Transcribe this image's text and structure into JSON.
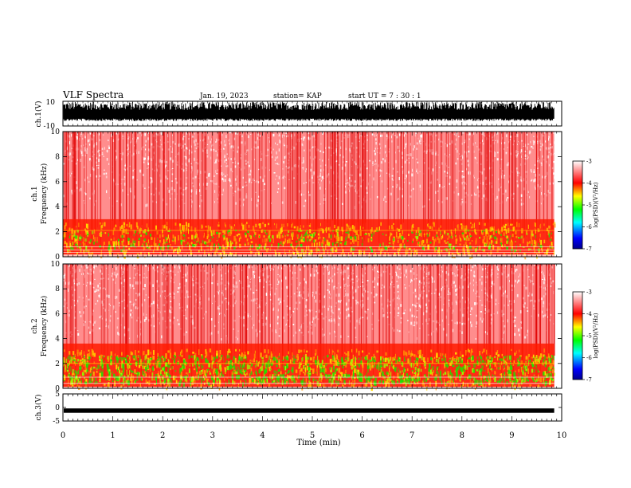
{
  "header": {
    "title": "VLF Spectra",
    "date": "Jan. 19, 2023",
    "station": "station= KAP",
    "start": "start  UT =   7 : 30 : 1"
  },
  "chart_data": [
    {
      "id": "ch1-waveform",
      "type": "line",
      "ylabel": "ch.1(V)",
      "ylim": [
        -10,
        10
      ],
      "ytick_labels": [
        "10",
        "-10"
      ],
      "xlim": [
        0,
        10
      ],
      "description_level": "dense noisy waveform between about -5 and 9 V"
    },
    {
      "id": "ch1-spectrogram",
      "type": "heatmap",
      "ylabel": "ch.1",
      "ylabel2": "Frequency (kHz)",
      "ylim": [
        0,
        10
      ],
      "ytick_labels": [
        "0",
        "2",
        "4",
        "6",
        "8",
        "10"
      ],
      "xlim": [
        0,
        9.85
      ],
      "colorbar": {
        "label": "log(PSD)(V²/Hz)",
        "range": [
          -7,
          -3
        ],
        "tick_labels": [
          "-3",
          "-4",
          "-5",
          "-6",
          "-7"
        ],
        "colors": [
          "#00008b",
          "#0000ff",
          "#00ffff",
          "#00ff00",
          "#ffff00",
          "#ff0000",
          "#ffffff"
        ]
      }
    },
    {
      "id": "ch2-spectrogram",
      "type": "heatmap",
      "ylabel": "ch.2",
      "ylabel2": "Frequency (kHz)",
      "ylim": [
        0,
        10
      ],
      "ytick_labels": [
        "0",
        "2",
        "4",
        "6",
        "8",
        "10"
      ],
      "xlim": [
        0,
        9.85
      ],
      "colorbar": {
        "label": "log(PSD)(V²/Hz)",
        "range": [
          -7,
          -3
        ],
        "tick_labels": [
          "-3",
          "-4",
          "-5",
          "-6",
          "-7"
        ],
        "colors": [
          "#00008b",
          "#0000ff",
          "#00ffff",
          "#00ff00",
          "#ffff00",
          "#ff0000",
          "#ffffff"
        ]
      }
    },
    {
      "id": "ch3-waveform",
      "type": "line",
      "ylabel": "ch.3(V)",
      "ylim": [
        -5,
        5
      ],
      "ytick_labels": [
        "5",
        "0",
        "-5"
      ],
      "xlim": [
        0,
        10
      ],
      "xlabel": "Time (min)",
      "xtick_labels": [
        "0",
        "1",
        "2",
        "3",
        "4",
        "5",
        "6",
        "7",
        "8",
        "9",
        "10"
      ],
      "level": -1.1
    }
  ]
}
